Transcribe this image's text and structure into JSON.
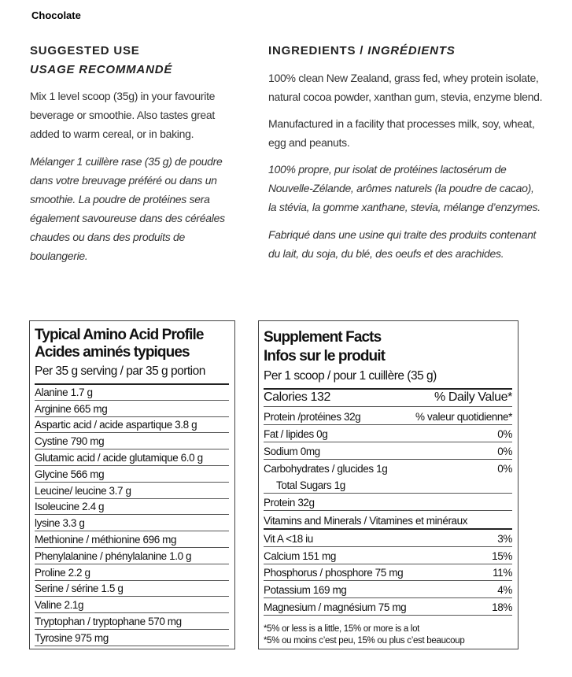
{
  "header": {
    "title": "Chocolate"
  },
  "usage": {
    "heading": "SUGGESTED USE",
    "heading_fr": "USAGE RECOMMANDÉ",
    "text": "Mix 1 level scoop (35g) in your favourite beverage or smoothie. Also tastes great added to warm cereal, or in baking.",
    "text_fr": "Mélanger 1 cuillère rase (35 g) de poudre dans votre breuvage préféré ou dans un smoothie. La poudre de protéines sera également savoureuse dans des céréales chaudes ou dans des produits de boulangerie."
  },
  "ingredients": {
    "heading": "INGREDIENTS /",
    "heading_fr": "INGRÉDIENTS",
    "text": "100% clean New Zealand, grass fed, whey protein isolate, natural  cocoa powder, xanthan gum, stevia, enzyme blend.",
    "facility": "Manufactured in a facility that processes milk, soy, wheat, egg and peanuts.",
    "text_fr": "100% propre, pur isolat de protéines lactosérum de Nouvelle-Zélande, arômes naturels (la poudre de cacao), la stévia, la gomme xanthane, stevia, mélange d’enzymes.",
    "facility_fr": "Fabriqué dans une usine qui traite des produits contenant du lait, du soja, du blé, des oeufs et des arachides."
  },
  "amino_table": {
    "title": "Typical Amino Acid Profile",
    "title_fr": "Acides aminés typiques",
    "serving": "Per 35 g serving / par 35 g portion",
    "rows": [
      "Alanine 1.7 g",
      "Arginine  665 mg",
      "Aspartic acid / acide aspartique 3.8 g",
      "Cystine 790 mg",
      "Glutamic acid / acide glutamique 6.0 g",
      "Glycine 566 mg",
      "Leucine/ leucine 3.7 g",
      "Isoleucine 2.4 g",
      "lysine 3.3 g",
      "Methionine / méthionine 696 mg",
      "Phenylalanine / phénylalanine 1.0 g",
      "Proline 2.2 g",
      "Serine / sérine 1.5 g",
      "Valine  2.1g",
      "Tryptophan / tryptophane 570 mg",
      "Tyrosine 975 mg"
    ]
  },
  "supplement_table": {
    "title": "Supplement Facts",
    "title_fr": "Infos sur le produit",
    "serving": "Per 1 scoop / pour 1 cuillère (35 g)",
    "rows": [
      [
        "Calories 132",
        "% Daily Value*"
      ],
      [
        "Protein /protéines 32g",
        "% valeur quotidienne*"
      ],
      [
        "Fat / lipides 0g",
        "0%"
      ],
      [
        "Sodium 0mg",
        "0%"
      ],
      [
        "Carbohydrates / glucides 1g",
        "0%"
      ],
      [
        "Total Sugars 1g"
      ],
      [
        "Protein 32g"
      ],
      [
        "Vitamins and Minerals / Vitamines et minéraux"
      ],
      [
        "Vit A <18 iu",
        "3%"
      ],
      [
        "Calcium 151 mg",
        "15%"
      ],
      [
        "Phosphorus / phosphore 75 mg",
        "11%"
      ],
      [
        "Potassium 169 mg",
        "4%"
      ],
      [
        "Magnesium / magnésium  75 mg",
        "18%"
      ]
    ],
    "footnotes": [
      "*5% or less is a little, 15% or more is a lot",
      "*5% ou moins c’est peu, 15% ou plus c’est beaucoup"
    ]
  }
}
